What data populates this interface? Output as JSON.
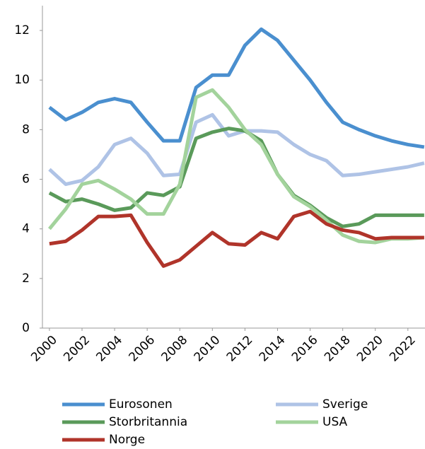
{
  "chart_data": {
    "type": "line",
    "x": [
      2000,
      2001,
      2002,
      2003,
      2004,
      2005,
      2006,
      2007,
      2008,
      2009,
      2010,
      2011,
      2012,
      2013,
      2014,
      2015,
      2016,
      2017,
      2018,
      2019,
      2020,
      2021,
      2022,
      2023
    ],
    "xlim": [
      1999.57,
      2023.05
    ],
    "xticks": [
      2000,
      2002,
      2004,
      2006,
      2008,
      2010,
      2012,
      2014,
      2016,
      2018,
      2020,
      2022
    ],
    "ylim": [
      0,
      13
    ],
    "yticks": [
      0,
      2,
      4,
      6,
      8,
      10,
      12
    ],
    "grid": false,
    "legend": "bottom",
    "series": [
      {
        "name": "Eurosonen",
        "color": "#4a8fcf",
        "values": [
          8.9,
          8.4,
          8.7,
          9.1,
          9.25,
          9.1,
          8.3,
          7.55,
          7.55,
          9.7,
          10.2,
          10.2,
          11.4,
          12.05,
          11.6,
          10.8,
          10.0,
          9.1,
          8.3,
          8.0,
          7.75,
          7.55,
          7.4,
          7.3
        ]
      },
      {
        "name": "Sverige",
        "color": "#afc3e6",
        "values": [
          6.4,
          5.8,
          5.95,
          6.5,
          7.4,
          7.65,
          7.05,
          6.15,
          6.2,
          8.3,
          8.6,
          7.75,
          7.95,
          7.95,
          7.9,
          7.4,
          7.0,
          6.75,
          6.15,
          6.2,
          6.3,
          6.4,
          6.5,
          6.65
        ]
      },
      {
        "name": "Storbritannia",
        "color": "#5a9a5a",
        "values": [
          5.45,
          5.1,
          5.2,
          5.0,
          4.75,
          4.85,
          5.45,
          5.35,
          5.7,
          7.65,
          7.9,
          8.05,
          7.95,
          7.55,
          6.2,
          5.35,
          4.95,
          4.45,
          4.1,
          4.2,
          4.55,
          4.55,
          4.55,
          4.55
        ]
      },
      {
        "name": "USA",
        "color": "#a3d39c",
        "values": [
          4.0,
          4.8,
          5.8,
          5.95,
          5.6,
          5.2,
          4.6,
          4.6,
          5.8,
          9.3,
          9.6,
          8.9,
          8.0,
          7.4,
          6.2,
          5.3,
          4.9,
          4.35,
          3.75,
          3.5,
          3.45,
          3.6,
          3.6,
          3.65
        ]
      },
      {
        "name": "Norge",
        "color": "#b0342a",
        "values": [
          3.4,
          3.5,
          3.95,
          4.5,
          4.5,
          4.55,
          3.45,
          2.5,
          2.75,
          3.3,
          3.85,
          3.4,
          3.35,
          3.85,
          3.6,
          4.5,
          4.7,
          4.2,
          3.95,
          3.85,
          3.6,
          3.65,
          3.65,
          3.65
        ]
      }
    ]
  }
}
